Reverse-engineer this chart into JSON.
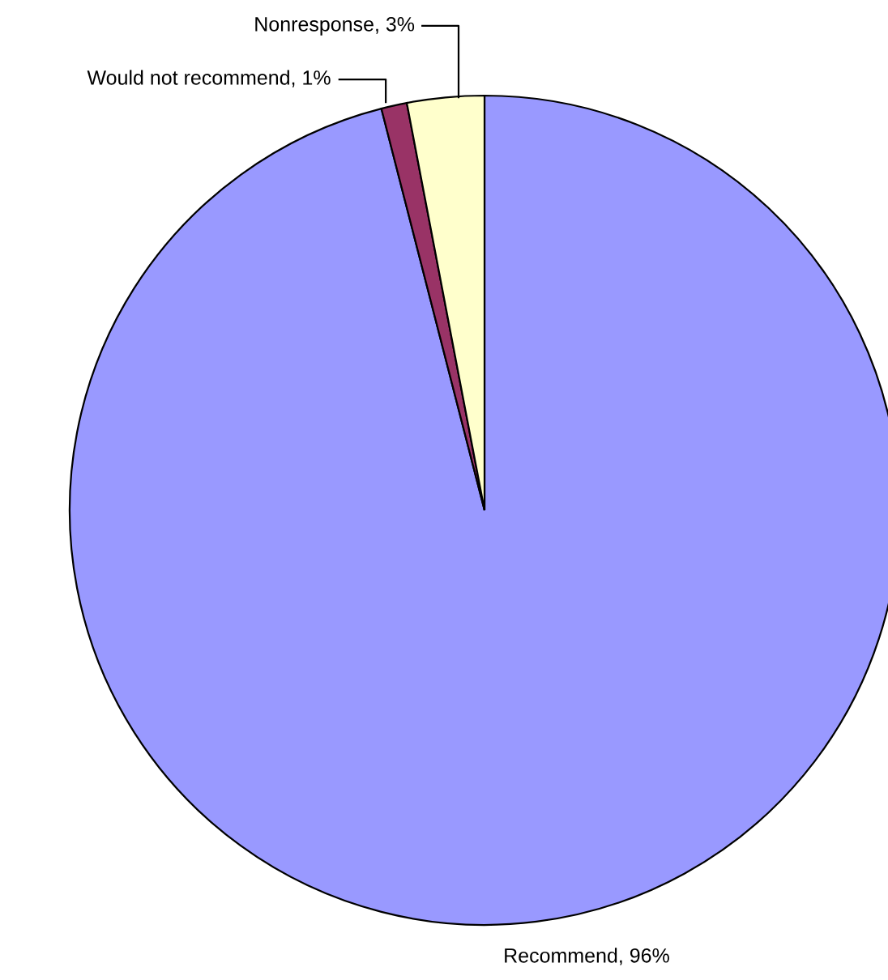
{
  "chart_data": {
    "type": "pie",
    "categories": [
      "Recommend",
      "Would not recommend",
      "Nonresponse"
    ],
    "values": [
      96,
      1,
      3
    ],
    "value_labels": [
      "96%",
      "1%",
      "3%"
    ],
    "colors": [
      "#9999ff",
      "#993366",
      "#ffffcc"
    ],
    "legend": false
  }
}
